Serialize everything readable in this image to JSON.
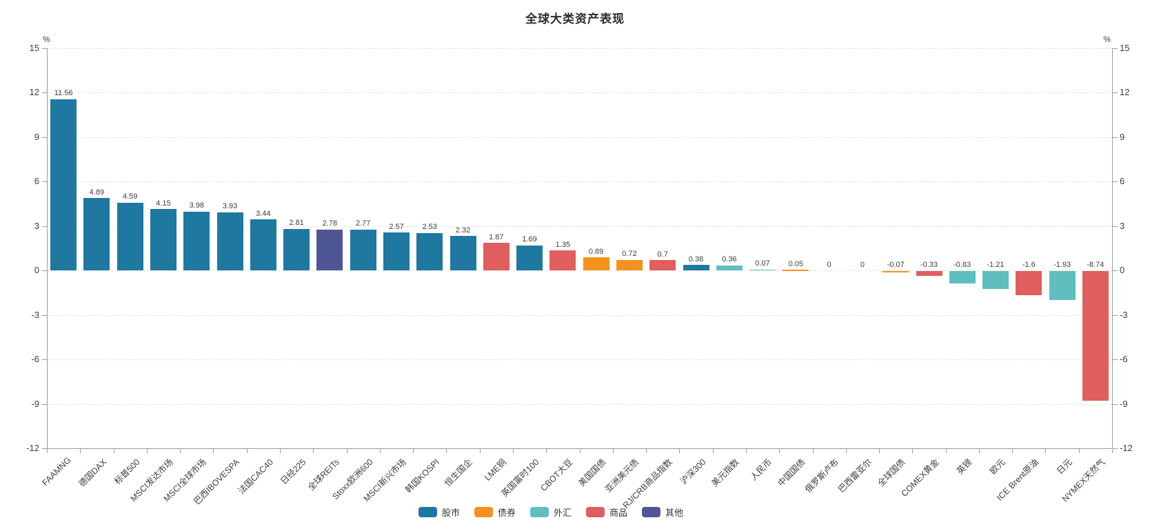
{
  "chart_data": {
    "type": "bar",
    "title": "全球大类资产表现",
    "unit": "%",
    "ylim": [
      -12,
      15
    ],
    "yticks": [
      15,
      12,
      9,
      6,
      3,
      0,
      -3,
      -6,
      -9,
      -12
    ],
    "grid": "horizontal dashed gridlines at every y tick, solid axis lines left/right/bottom",
    "legend_position": "bottom-center",
    "xlabel": "",
    "ylabel": "%",
    "categories": [
      "FAAMNG",
      "德国DAX",
      "标普500",
      "MSCI发达市场",
      "MSCI全球市场",
      "巴西IBOVESPA",
      "法国CAC40",
      "日经225",
      "全球REITs",
      "Stoxx欧洲600",
      "MSCI新兴市场",
      "韩国KOSPI",
      "恒生国企",
      "LME铜",
      "英国富时100",
      "CBOT大豆",
      "美国国债",
      "亚洲美元债",
      "RJ/CRB商品指数",
      "沪深300",
      "美元指数",
      "人民币",
      "中国国债",
      "俄罗斯卢布",
      "巴西雷亚尔",
      "全球国债",
      "COMEX黄金",
      "英镑",
      "欧元",
      "ICE Brent原油",
      "日元",
      "NYMEX天然气"
    ],
    "values": [
      11.56,
      4.89,
      4.59,
      4.15,
      3.98,
      3.93,
      3.44,
      2.81,
      2.78,
      2.77,
      2.57,
      2.53,
      2.32,
      1.87,
      1.69,
      1.35,
      0.89,
      0.72,
      0.7,
      0.38,
      0.36,
      0.07,
      0.05,
      0,
      0,
      -0.07,
      -0.33,
      -0.83,
      -1.21,
      -1.6,
      -1.93,
      -8.74
    ],
    "value_labels": [
      "11.56",
      "4.89",
      "4.59",
      "4.15",
      "3.98",
      "3.93",
      "3.44",
      "2.81",
      "2.78",
      "2.77",
      "2.57",
      "2.53",
      "2.32",
      "1.87",
      "1.69",
      "1.35",
      "0.89",
      "0.72",
      "0.7",
      "0.38",
      "0.36",
      "0.07",
      "0.05",
      "0",
      "0",
      "-0.07",
      "-0.33",
      "-0.83",
      "-1.21",
      "-1.6",
      "-1.93",
      "-8.74"
    ],
    "bar_groups": [
      "股市",
      "股市",
      "股市",
      "股市",
      "股市",
      "股市",
      "股市",
      "股市",
      "其他",
      "股市",
      "股市",
      "股市",
      "股市",
      "商品",
      "股市",
      "商品",
      "债券",
      "债券",
      "商品",
      "股市",
      "外汇",
      "外汇",
      "债券",
      "外汇",
      "外汇",
      "债券",
      "商品",
      "外汇",
      "外汇",
      "商品",
      "外汇",
      "商品"
    ],
    "legend": [
      {
        "label": "股市",
        "color": "#1F78A0"
      },
      {
        "label": "债券",
        "color": "#F3921E"
      },
      {
        "label": "外汇",
        "color": "#5FBFBF"
      },
      {
        "label": "商品",
        "color": "#E05E5E"
      },
      {
        "label": "其他",
        "color": "#4E5794"
      }
    ],
    "colors": {
      "axis_line": "#9a9a9a",
      "grid_line": "#e2e2e2",
      "text": "#3c3c3c"
    }
  }
}
